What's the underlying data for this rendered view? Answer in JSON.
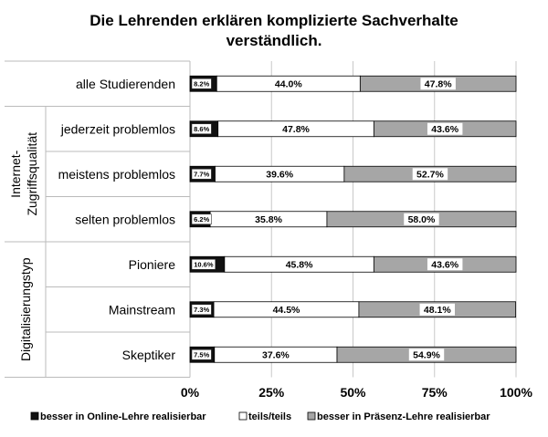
{
  "chart_data": {
    "type": "bar",
    "orientation": "horizontal",
    "stacked": true,
    "title_line1": "Die Lehrenden erklären komplizierte Sachverhalte",
    "title_line2": "verständlich.",
    "categories": [
      "alle Studierenden",
      "jederzeit problemlos",
      "meistens problemlos",
      "selten problemlos",
      "Pioniere",
      "Mainstream",
      "Skeptiker"
    ],
    "groups": [
      {
        "label_line1": "Internet-",
        "label_line2": "Zugriffsqualität",
        "categories": [
          "jederzeit problemlos",
          "meistens problemlos",
          "selten problemlos"
        ]
      },
      {
        "label_line1": "Digitalisierungstyp",
        "label_line2": "",
        "categories": [
          "Pioniere",
          "Mainstream",
          "Skeptiker"
        ]
      }
    ],
    "series": [
      {
        "name": "besser in Online-Lehre realisierbar",
        "color": "#111111",
        "values": [
          8.2,
          8.6,
          7.7,
          6.2,
          10.6,
          7.3,
          7.5
        ],
        "labels": [
          "8.2%",
          "8.6%",
          "7.7%",
          "6.2%",
          "10.6%",
          "7.3%",
          "7.5%"
        ]
      },
      {
        "name": "teils/teils",
        "color": "#ffffff",
        "values": [
          44.0,
          47.8,
          39.6,
          35.8,
          45.8,
          44.5,
          37.6
        ],
        "labels": [
          "44.0%",
          "47.8%",
          "39.6%",
          "35.8%",
          "45.8%",
          "44.5%",
          "37.6%"
        ]
      },
      {
        "name": "besser in Präsenz-Lehre realisierbar",
        "color": "#a6a6a6",
        "values": [
          47.8,
          43.6,
          52.7,
          58.0,
          43.6,
          48.1,
          54.9
        ],
        "labels": [
          "47.8%",
          "43.6%",
          "52.7%",
          "58.0%",
          "43.6%",
          "48.1%",
          "54.9%"
        ]
      }
    ],
    "xticks": [
      "0%",
      "25%",
      "50%",
      "75%",
      "100%"
    ],
    "xlim": [
      0,
      100
    ],
    "grid": true,
    "legend_position": "bottom"
  }
}
